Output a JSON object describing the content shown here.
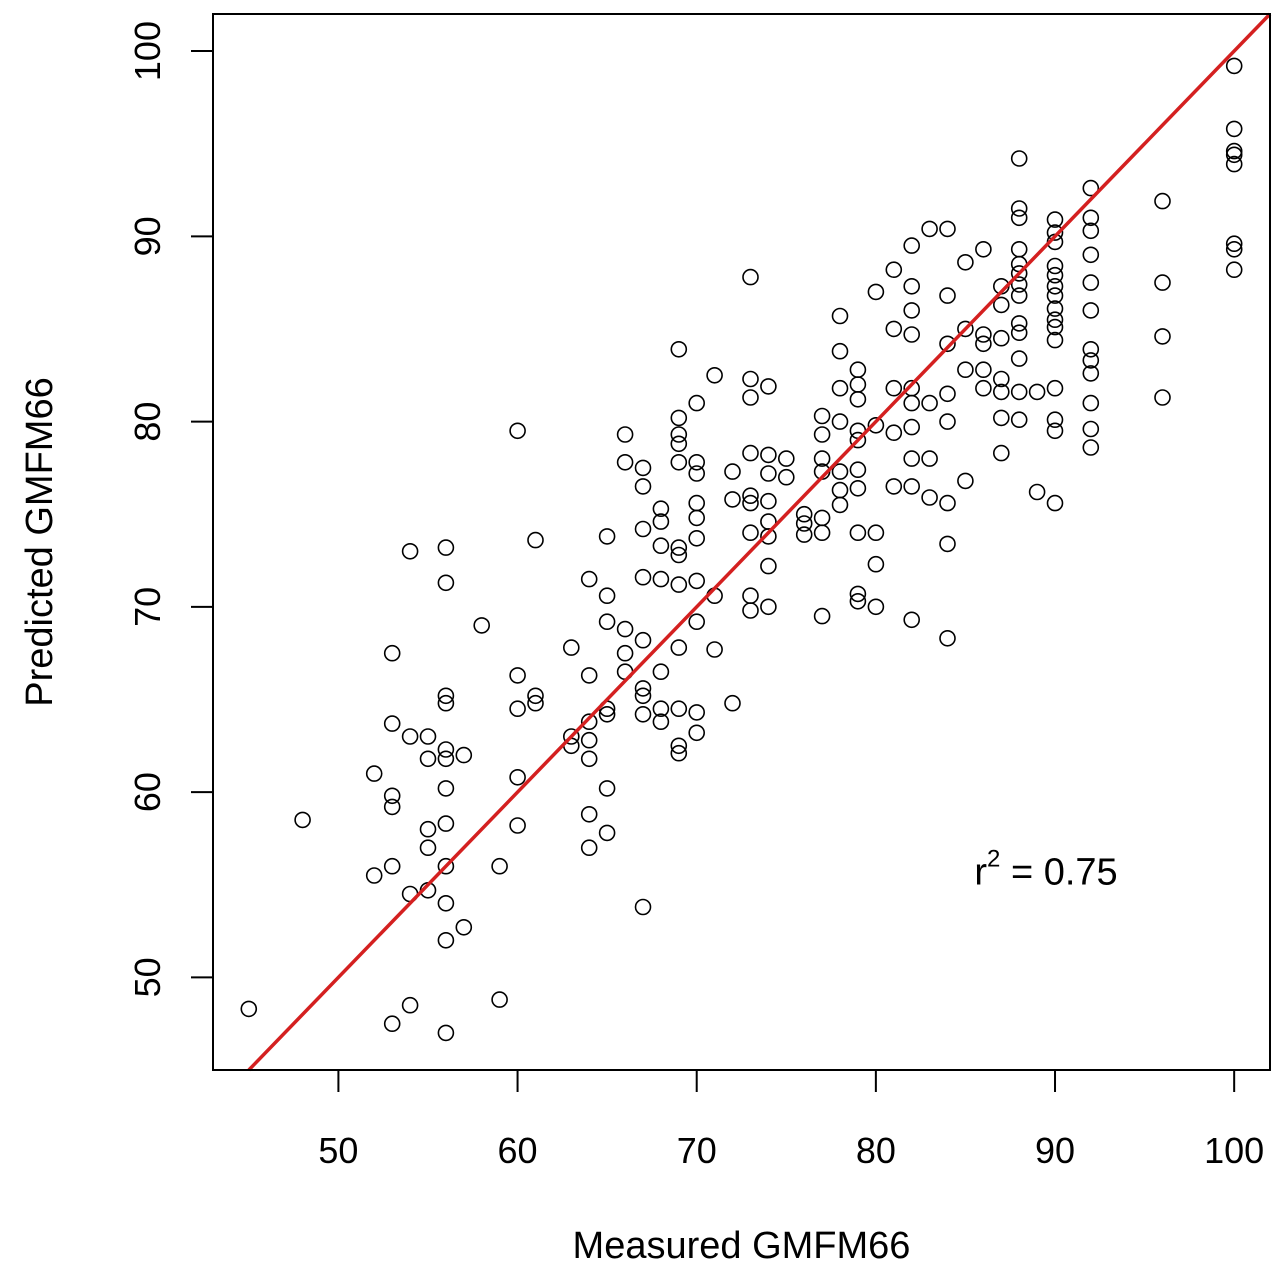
{
  "chart_data": {
    "type": "scatter",
    "xlabel": "Measured GMFM66",
    "ylabel": "Predicted GMFM66",
    "xlim": [
      43,
      102
    ],
    "ylim": [
      45,
      102
    ],
    "xticks": [
      50,
      60,
      70,
      80,
      90,
      100
    ],
    "yticks": [
      50,
      60,
      70,
      80,
      90,
      100
    ],
    "xtick_labels": [
      "50",
      "60",
      "70",
      "80",
      "90",
      "100"
    ],
    "ytick_labels": [
      "50",
      "60",
      "70",
      "80",
      "90",
      "100"
    ],
    "grid": false,
    "marker": "open-circle",
    "reference_line": {
      "type": "identity",
      "slope": 1,
      "intercept": 0,
      "color": "#d42020"
    },
    "annotation": {
      "base": "r",
      "superscript": "2",
      "text": " = 0.75",
      "x": 85.5,
      "y": 55
    },
    "points": [
      [
        45,
        48.3
      ],
      [
        48,
        58.5
      ],
      [
        52,
        61
      ],
      [
        52,
        55.5
      ],
      [
        53,
        67.5
      ],
      [
        53,
        63.7
      ],
      [
        53,
        59.8
      ],
      [
        53,
        59.2
      ],
      [
        53,
        56
      ],
      [
        53,
        47.5
      ],
      [
        54,
        73
      ],
      [
        54,
        63
      ],
      [
        54,
        54.5
      ],
      [
        54,
        48.5
      ],
      [
        55,
        63
      ],
      [
        55,
        61.8
      ],
      [
        55,
        58
      ],
      [
        55,
        57
      ],
      [
        55,
        54.7
      ],
      [
        56,
        73.2
      ],
      [
        56,
        71.3
      ],
      [
        56,
        65.2
      ],
      [
        56,
        64.8
      ],
      [
        56,
        62.3
      ],
      [
        56,
        61.8
      ],
      [
        56,
        60.2
      ],
      [
        56,
        58.3
      ],
      [
        56,
        56
      ],
      [
        56,
        54
      ],
      [
        56,
        52
      ],
      [
        56,
        47
      ],
      [
        57,
        62
      ],
      [
        57,
        52.7
      ],
      [
        58,
        69
      ],
      [
        59,
        56
      ],
      [
        59,
        48.8
      ],
      [
        60,
        79.5
      ],
      [
        60,
        66.3
      ],
      [
        60,
        64.5
      ],
      [
        60,
        60.8
      ],
      [
        60,
        58.2
      ],
      [
        61,
        73.6
      ],
      [
        61,
        65.2
      ],
      [
        61,
        64.8
      ],
      [
        63,
        67.8
      ],
      [
        63,
        63
      ],
      [
        63,
        62.5
      ],
      [
        64,
        71.5
      ],
      [
        64,
        66.3
      ],
      [
        64,
        63.8
      ],
      [
        64,
        62.8
      ],
      [
        64,
        61.8
      ],
      [
        64,
        58.8
      ],
      [
        64,
        57
      ],
      [
        65,
        73.8
      ],
      [
        65,
        70.6
      ],
      [
        65,
        69.2
      ],
      [
        65,
        64.5
      ],
      [
        65,
        64.2
      ],
      [
        65,
        60.2
      ],
      [
        65,
        57.8
      ],
      [
        66,
        79.3
      ],
      [
        66,
        77.8
      ],
      [
        66,
        68.8
      ],
      [
        66,
        67.5
      ],
      [
        66,
        66.5
      ],
      [
        67,
        77.5
      ],
      [
        67,
        76.5
      ],
      [
        67,
        74.2
      ],
      [
        67,
        71.6
      ],
      [
        67,
        68.2
      ],
      [
        67,
        65.6
      ],
      [
        67,
        65.2
      ],
      [
        67,
        64.2
      ],
      [
        67,
        53.8
      ],
      [
        68,
        75.3
      ],
      [
        68,
        74.6
      ],
      [
        68,
        73.3
      ],
      [
        68,
        71.5
      ],
      [
        68,
        66.5
      ],
      [
        68,
        64.5
      ],
      [
        68,
        63.8
      ],
      [
        69,
        83.9
      ],
      [
        69,
        80.2
      ],
      [
        69,
        79.3
      ],
      [
        69,
        78.8
      ],
      [
        69,
        77.8
      ],
      [
        69,
        73.2
      ],
      [
        69,
        72.8
      ],
      [
        69,
        71.2
      ],
      [
        69,
        67.8
      ],
      [
        69,
        64.5
      ],
      [
        69,
        62.5
      ],
      [
        69,
        62.1
      ],
      [
        70,
        81
      ],
      [
        70,
        77.8
      ],
      [
        70,
        77.2
      ],
      [
        70,
        75.6
      ],
      [
        70,
        74.8
      ],
      [
        70,
        73.7
      ],
      [
        70,
        71.4
      ],
      [
        70,
        69.2
      ],
      [
        70,
        64.3
      ],
      [
        70,
        63.2
      ],
      [
        71,
        82.5
      ],
      [
        71,
        70.6
      ],
      [
        71,
        67.7
      ],
      [
        72,
        77.3
      ],
      [
        72,
        75.8
      ],
      [
        72,
        64.8
      ],
      [
        73,
        87.8
      ],
      [
        73,
        82.3
      ],
      [
        73,
        81.3
      ],
      [
        73,
        78.3
      ],
      [
        73,
        76
      ],
      [
        73,
        75.6
      ],
      [
        73,
        74
      ],
      [
        73,
        70.6
      ],
      [
        73,
        69.8
      ],
      [
        74,
        81.9
      ],
      [
        74,
        78.2
      ],
      [
        74,
        77.2
      ],
      [
        74,
        75.7
      ],
      [
        74,
        74.6
      ],
      [
        74,
        73.8
      ],
      [
        74,
        72.2
      ],
      [
        74,
        70
      ],
      [
        75,
        78
      ],
      [
        75,
        77
      ],
      [
        76,
        75
      ],
      [
        76,
        74.5
      ],
      [
        76,
        73.9
      ],
      [
        77,
        80.3
      ],
      [
        77,
        79.3
      ],
      [
        77,
        78
      ],
      [
        77,
        77.3
      ],
      [
        77,
        74.8
      ],
      [
        77,
        74
      ],
      [
        77,
        69.5
      ],
      [
        78,
        85.7
      ],
      [
        78,
        83.8
      ],
      [
        78,
        81.8
      ],
      [
        78,
        80
      ],
      [
        78,
        77.3
      ],
      [
        78,
        76.3
      ],
      [
        78,
        75.5
      ],
      [
        79,
        82.8
      ],
      [
        79,
        82
      ],
      [
        79,
        81.2
      ],
      [
        79,
        79.5
      ],
      [
        79,
        79
      ],
      [
        79,
        77.4
      ],
      [
        79,
        76.4
      ],
      [
        79,
        74
      ],
      [
        79,
        70.7
      ],
      [
        79,
        70.3
      ],
      [
        80,
        87
      ],
      [
        80,
        79.8
      ],
      [
        80,
        74
      ],
      [
        80,
        72.3
      ],
      [
        80,
        70
      ],
      [
        81,
        88.2
      ],
      [
        81,
        85
      ],
      [
        81,
        81.8
      ],
      [
        81,
        79.4
      ],
      [
        81,
        76.5
      ],
      [
        82,
        89.5
      ],
      [
        82,
        87.3
      ],
      [
        82,
        86
      ],
      [
        82,
        84.7
      ],
      [
        82,
        81.8
      ],
      [
        82,
        81
      ],
      [
        82,
        79.7
      ],
      [
        82,
        78
      ],
      [
        82,
        76.5
      ],
      [
        82,
        69.3
      ],
      [
        83,
        90.4
      ],
      [
        83,
        81
      ],
      [
        83,
        78
      ],
      [
        83,
        75.9
      ],
      [
        84,
        90.4
      ],
      [
        84,
        86.8
      ],
      [
        84,
        84.2
      ],
      [
        84,
        81.5
      ],
      [
        84,
        80
      ],
      [
        84,
        75.6
      ],
      [
        84,
        73.4
      ],
      [
        84,
        68.3
      ],
      [
        85,
        88.6
      ],
      [
        85,
        85
      ],
      [
        85,
        82.8
      ],
      [
        85,
        76.8
      ],
      [
        86,
        89.3
      ],
      [
        86,
        84.7
      ],
      [
        86,
        84.2
      ],
      [
        86,
        82.8
      ],
      [
        86,
        81.8
      ],
      [
        87,
        87.3
      ],
      [
        87,
        86.3
      ],
      [
        87,
        84.5
      ],
      [
        87,
        82.3
      ],
      [
        87,
        81.6
      ],
      [
        87,
        80.2
      ],
      [
        87,
        78.3
      ],
      [
        88,
        94.2
      ],
      [
        88,
        91.5
      ],
      [
        88,
        91
      ],
      [
        88,
        89.3
      ],
      [
        88,
        88.5
      ],
      [
        88,
        88
      ],
      [
        88,
        87.4
      ],
      [
        88,
        86.8
      ],
      [
        88,
        85.3
      ],
      [
        88,
        84.8
      ],
      [
        88,
        83.4
      ],
      [
        88,
        81.6
      ],
      [
        88,
        80.1
      ],
      [
        89,
        81.6
      ],
      [
        89,
        76.2
      ],
      [
        90,
        90.9
      ],
      [
        90,
        90.2
      ],
      [
        90,
        89.7
      ],
      [
        90,
        88.4
      ],
      [
        90,
        87.9
      ],
      [
        90,
        87.3
      ],
      [
        90,
        86.8
      ],
      [
        90,
        86.1
      ],
      [
        90,
        85.5
      ],
      [
        90,
        85.1
      ],
      [
        90,
        84.4
      ],
      [
        90,
        81.8
      ],
      [
        90,
        80.1
      ],
      [
        90,
        79.5
      ],
      [
        90,
        75.6
      ],
      [
        92,
        92.6
      ],
      [
        92,
        91
      ],
      [
        92,
        90.3
      ],
      [
        92,
        89
      ],
      [
        92,
        87.5
      ],
      [
        92,
        86
      ],
      [
        92,
        83.9
      ],
      [
        92,
        83.3
      ],
      [
        92,
        82.6
      ],
      [
        92,
        81
      ],
      [
        92,
        79.6
      ],
      [
        92,
        78.6
      ],
      [
        96,
        91.9
      ],
      [
        96,
        87.5
      ],
      [
        96,
        84.6
      ],
      [
        96,
        81.3
      ],
      [
        100,
        99.2
      ],
      [
        100,
        95.8
      ],
      [
        100,
        94.6
      ],
      [
        100,
        94.4
      ],
      [
        100,
        93.9
      ],
      [
        100,
        89.6
      ],
      [
        100,
        89.3
      ],
      [
        100,
        88.2
      ]
    ]
  }
}
